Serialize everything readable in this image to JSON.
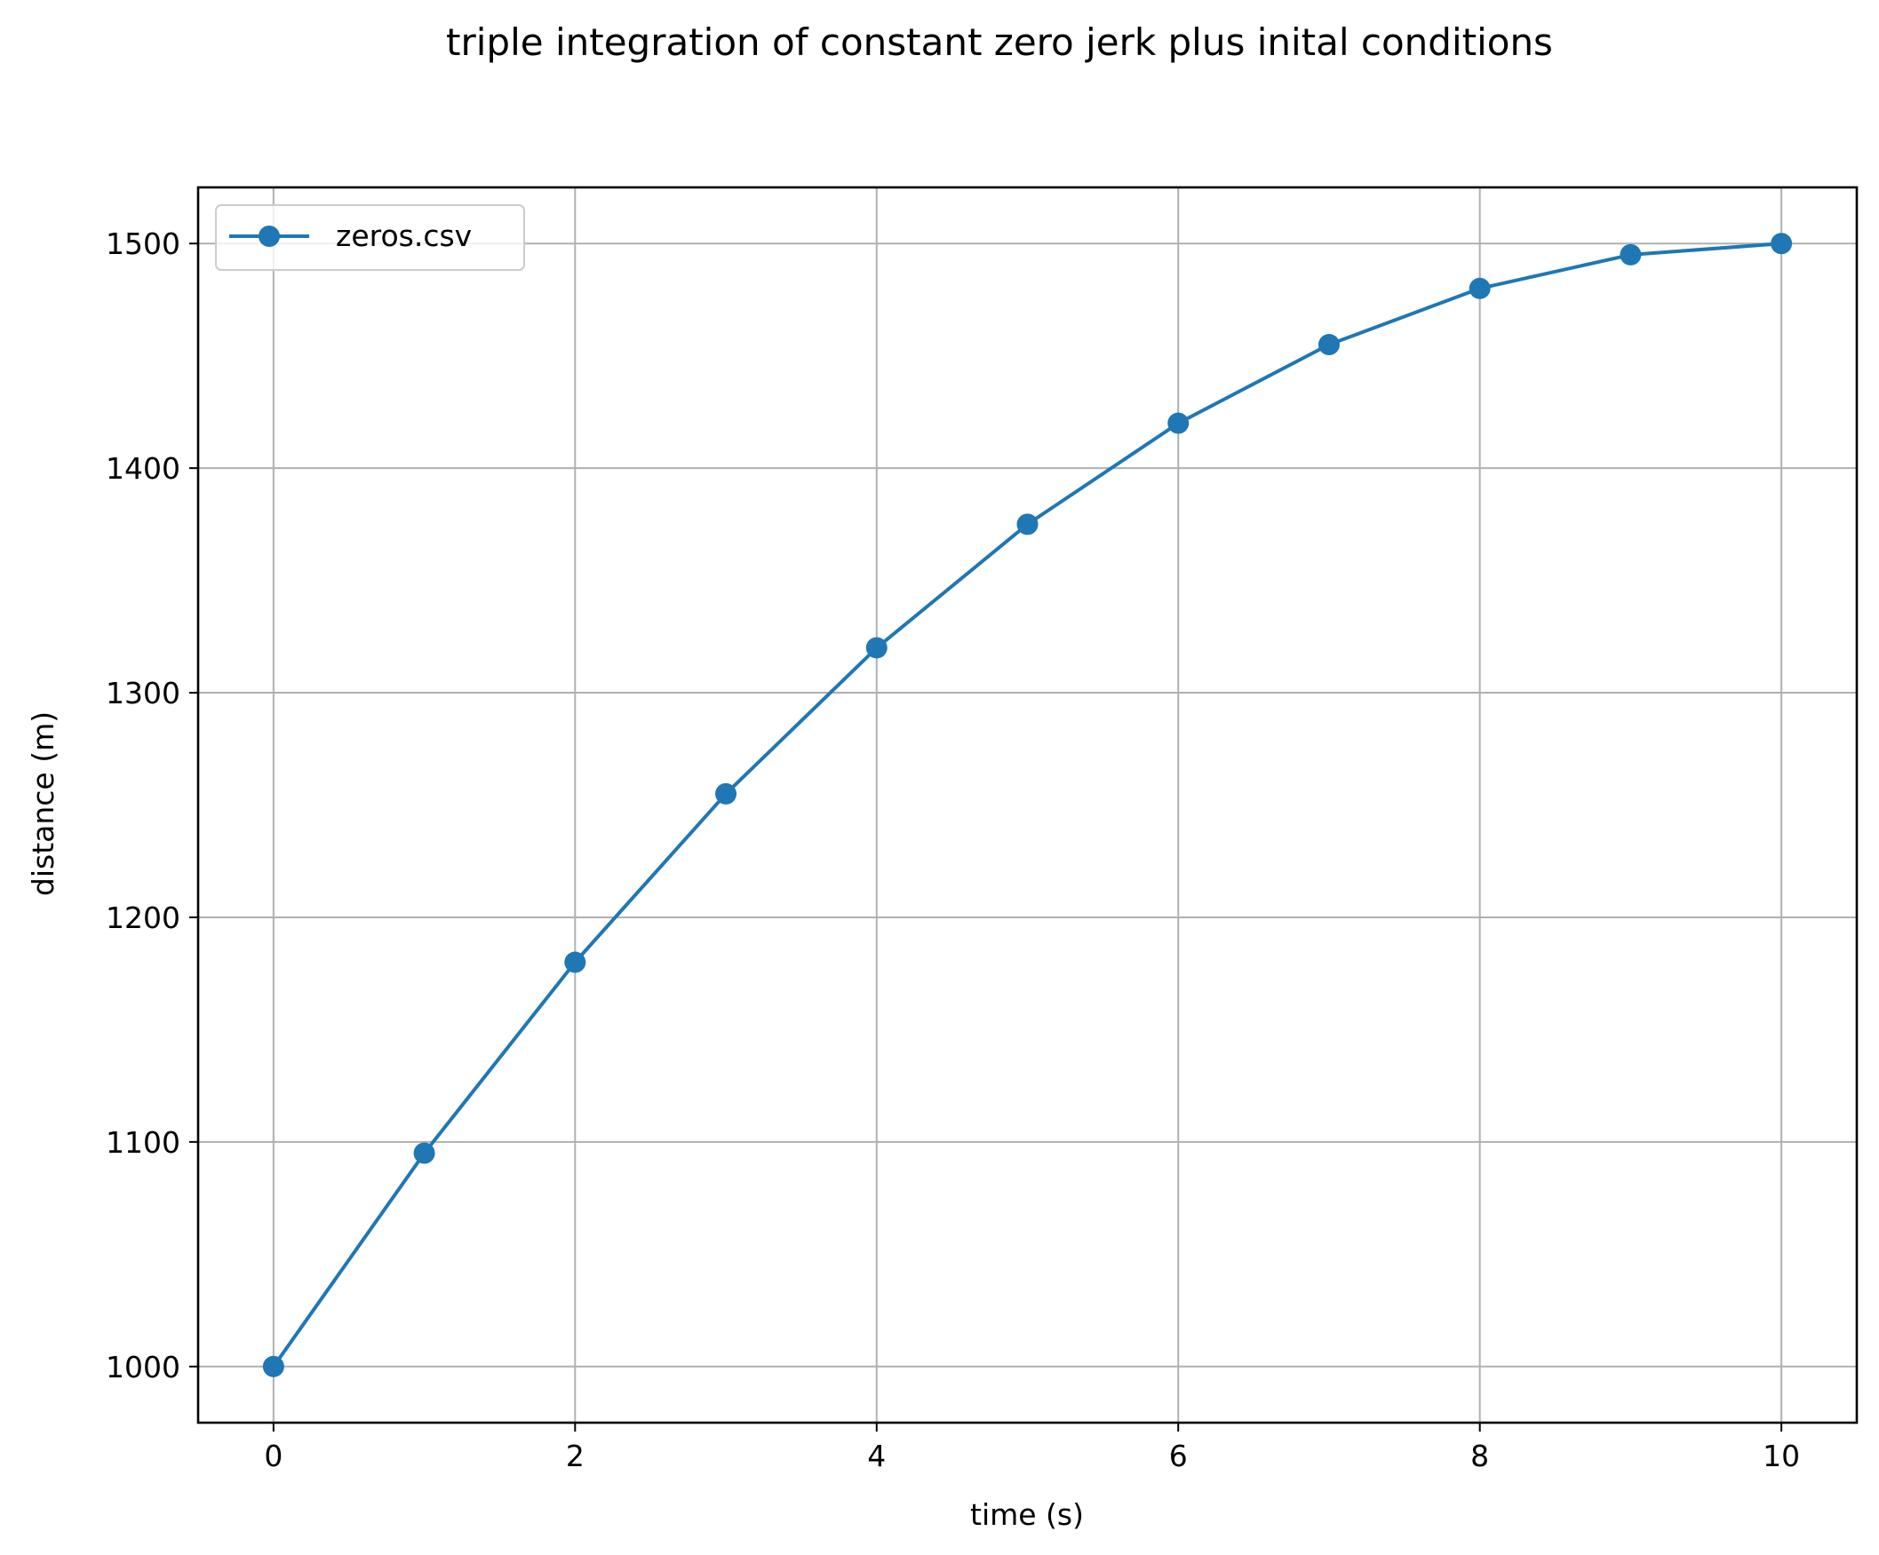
{
  "chart_data": {
    "type": "line",
    "title": "triple integration of constant zero jerk plus inital conditions",
    "xlabel": "time (s)",
    "ylabel": "distance (m)",
    "xlim": [
      -0.5,
      10.5
    ],
    "ylim": [
      975,
      1525
    ],
    "xticks": [
      0,
      2,
      4,
      6,
      8,
      10
    ],
    "yticks": [
      1000,
      1100,
      1200,
      1300,
      1400,
      1500
    ],
    "grid": true,
    "legend_position": "upper-left",
    "series": [
      {
        "name": "zeros.csv",
        "color": "#1f77b4",
        "marker": "circle",
        "x": [
          0,
          1,
          2,
          3,
          4,
          5,
          6,
          7,
          8,
          9,
          10
        ],
        "y": [
          1000,
          1095,
          1180,
          1255,
          1320,
          1375,
          1420,
          1455,
          1480,
          1495,
          1500
        ]
      }
    ]
  }
}
